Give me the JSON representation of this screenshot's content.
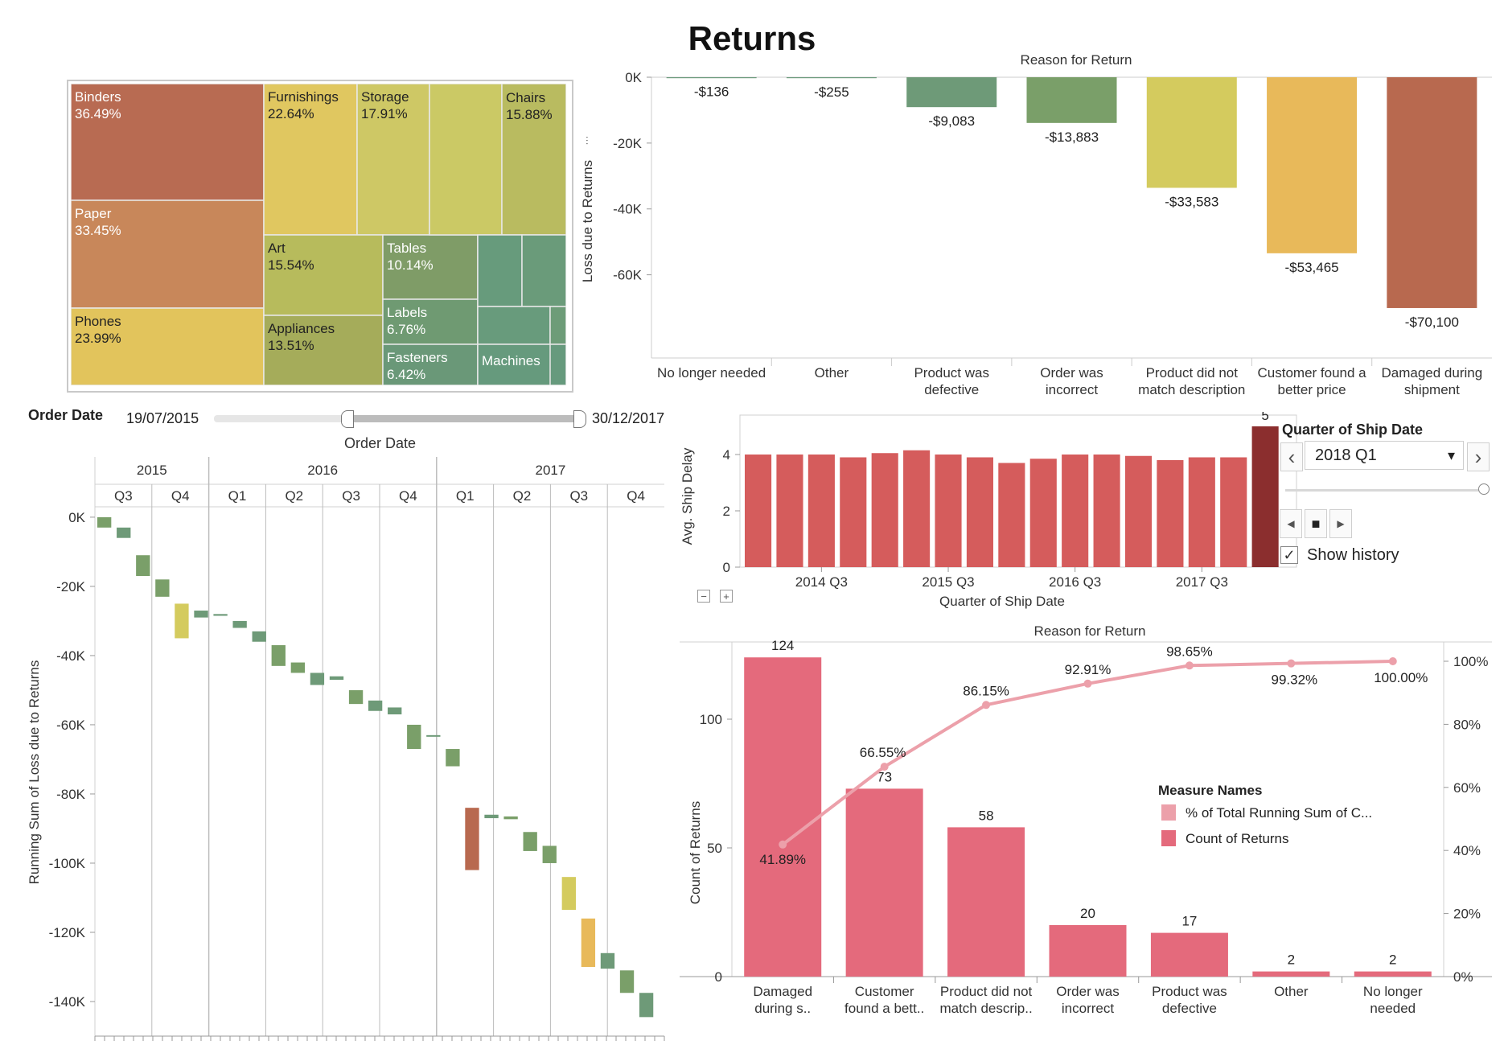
{
  "page_title": "Returns",
  "treemap": {
    "tiles": [
      {
        "name": "Binders",
        "pct": "36.49%",
        "color": "#b86b52"
      },
      {
        "name": "Paper",
        "pct": "33.45%",
        "color": "#c8875a"
      },
      {
        "name": "Phones",
        "pct": "23.99%",
        "color": "#e2c45c"
      },
      {
        "name": "Furnishings",
        "pct": "22.64%",
        "color": "#e0c760"
      },
      {
        "name": "Storage",
        "pct": "17.91%",
        "color": "#cec865"
      },
      {
        "name": "Chairs",
        "pct": "15.88%",
        "color": "#bcbb5f"
      },
      {
        "name": "Art",
        "pct": "15.54%",
        "color": "#b7bb5c"
      },
      {
        "name": "Appliances",
        "pct": "13.51%",
        "color": "#a5ac5a"
      },
      {
        "name": "Tables",
        "pct": "10.14%",
        "color": "#7f9c67"
      },
      {
        "name": "Labels",
        "pct": "6.76%",
        "color": "#6f9a72"
      },
      {
        "name": "Fasteners",
        "pct": "6.42%",
        "color": "#6a9878"
      },
      {
        "name": "Machines",
        "pct": "",
        "color": "#669a7d"
      }
    ]
  },
  "reason_chart": {
    "title": "Reason for Return",
    "ylabel": "Loss due to Returns",
    "yticks": [
      "0K",
      "-20K",
      "-40K",
      "-60K"
    ],
    "value_labels": [
      "-$136",
      "-$255",
      "-$9,083",
      "-$13,883",
      "-$33,583",
      "-$53,465",
      "-$70,100"
    ],
    "category_lines": [
      [
        "No longer needed"
      ],
      [
        "Other"
      ],
      [
        "Product was",
        "defective"
      ],
      [
        "Order was",
        "incorrect"
      ],
      [
        "Product did not",
        "match description"
      ],
      [
        "Customer found a",
        "better price"
      ],
      [
        "Damaged during",
        "shipment"
      ]
    ],
    "colors": [
      "#6b9a7c",
      "#6b9a7c",
      "#6e9a78",
      "#7a9f69",
      "#d4cb5e",
      "#e8b95a",
      "#b8694f"
    ]
  },
  "order_date_filter": {
    "label": "Order Date",
    "start": "19/07/2015",
    "end": "30/12/2017",
    "caption": "Order Date"
  },
  "running_chart": {
    "ylabel": "Running Sum of Loss due to Returns",
    "yticks": [
      "0K",
      "-20K",
      "-40K",
      "-60K",
      "-80K",
      "-100K",
      "-120K",
      "-140K"
    ],
    "years": [
      "2015",
      "2016",
      "2017"
    ],
    "quarters": [
      "Q3",
      "Q4",
      "Q1",
      "Q2",
      "Q3",
      "Q4",
      "Q1",
      "Q2",
      "Q3",
      "Q4"
    ]
  },
  "ship_chart": {
    "ylabel": "Avg. Ship Delay",
    "xlabel": "Quarter of Ship Date",
    "yticks": [
      "4",
      "2",
      "0"
    ],
    "xticks": [
      "2014 Q3",
      "2015 Q3",
      "2016 Q3",
      "2017 Q3"
    ],
    "highlight_label": "5",
    "bar_color": "#d55c5c",
    "highlight_color": "#8b2e2e"
  },
  "quarter_control": {
    "title": "Quarter of Ship Date",
    "selected": "2018 Q1",
    "show_history": "Show history",
    "prev_icon": "‹",
    "next_icon": "›",
    "dropdown_icon": "▾",
    "back_icon": "◀",
    "stop_icon": "■",
    "play_icon": "▶",
    "check_icon": "✓",
    "zoom_out_icon": "−",
    "zoom_in_icon": "+"
  },
  "pareto_chart": {
    "title": "Reason for Return",
    "ylabel": "Count of Returns",
    "yticks": [
      "100",
      "50",
      "0"
    ],
    "y2ticks": [
      "100%",
      "80%",
      "60%",
      "40%",
      "20%",
      "0%"
    ],
    "count_labels": [
      "124",
      "73",
      "58",
      "20",
      "17",
      "2",
      "2"
    ],
    "pct_labels": [
      "41.89%",
      "66.55%",
      "86.15%",
      "92.91%",
      "98.65%",
      "99.32%",
      "100.00%"
    ],
    "category_lines": [
      [
        "Damaged",
        "during s.."
      ],
      [
        "Customer",
        "found a bett.."
      ],
      [
        "Product did not",
        "match descrip.."
      ],
      [
        "Order was",
        "incorrect"
      ],
      [
        "Product was",
        "defective"
      ],
      [
        "Other"
      ],
      [
        "No longer",
        "needed"
      ]
    ],
    "legend_title": "Measure Names",
    "legend_items": [
      "% of Total Running Sum of C...",
      "Count of Returns"
    ],
    "bar_color": "#e46a7c",
    "line_color": "#eca0aa"
  },
  "chart_data": [
    {
      "type": "bar",
      "title": "Reason for Return",
      "ylabel": "Loss due to Returns",
      "categories": [
        "No longer needed",
        "Other",
        "Product was defective",
        "Order was incorrect",
        "Product did not match description",
        "Customer found a better price",
        "Damaged during shipment"
      ],
      "values": [
        -136,
        -255,
        -9083,
        -13883,
        -33583,
        -53465,
        -70100
      ],
      "ylim": [
        -75000,
        0
      ]
    },
    {
      "type": "bar",
      "title": "",
      "ylabel": "Running Sum of Loss due to Returns",
      "subtype": "waterfall",
      "segments": [
        {
          "start": 0,
          "end": -3000,
          "color": "#7a9f69"
        },
        {
          "start": -3000,
          "end": -6000,
          "color": "#6e9a78"
        },
        {
          "start": -11000,
          "end": -17000,
          "color": "#7a9f69"
        },
        {
          "start": -18000,
          "end": -23000,
          "color": "#7a9f69"
        },
        {
          "start": -25000,
          "end": -35000,
          "color": "#d4cb5e"
        },
        {
          "start": -27000,
          "end": -29000,
          "color": "#6e9a78"
        },
        {
          "start": -28000,
          "end": -28500,
          "color": "#6e9a78"
        },
        {
          "start": -30000,
          "end": -32000,
          "color": "#6e9a78"
        },
        {
          "start": -33000,
          "end": -36000,
          "color": "#6e9a78"
        },
        {
          "start": -37000,
          "end": -43000,
          "color": "#7a9f69"
        },
        {
          "start": -42000,
          "end": -45000,
          "color": "#7a9f69"
        },
        {
          "start": -45000,
          "end": -48500,
          "color": "#6e9a78"
        },
        {
          "start": -46000,
          "end": -47000,
          "color": "#6e9a78"
        },
        {
          "start": -50000,
          "end": -54000,
          "color": "#7a9f69"
        },
        {
          "start": -53000,
          "end": -56000,
          "color": "#6e9a78"
        },
        {
          "start": -55000,
          "end": -57000,
          "color": "#6e9a78"
        },
        {
          "start": -60000,
          "end": -67000,
          "color": "#7a9f69"
        },
        {
          "start": -63000,
          "end": -63300,
          "color": "#6e9a78"
        },
        {
          "start": -67000,
          "end": -72000,
          "color": "#7a9f69"
        },
        {
          "start": -84000,
          "end": -102000,
          "color": "#b8694f"
        },
        {
          "start": -86000,
          "end": -87000,
          "color": "#6e9a78"
        },
        {
          "start": -86500,
          "end": -87300,
          "color": "#7a9f69"
        },
        {
          "start": -91000,
          "end": -96500,
          "color": "#7a9f69"
        },
        {
          "start": -95000,
          "end": -100000,
          "color": "#7a9f69"
        },
        {
          "start": -104000,
          "end": -113500,
          "color": "#d4cb5e"
        },
        {
          "start": -116000,
          "end": -130000,
          "color": "#e8b95a"
        },
        {
          "start": -126000,
          "end": -130500,
          "color": "#6e9a78"
        },
        {
          "start": -131000,
          "end": -137500,
          "color": "#7a9f69"
        },
        {
          "start": -137500,
          "end": -144500,
          "color": "#6e9a78"
        }
      ],
      "ylim": [
        -150000,
        3000
      ]
    },
    {
      "type": "bar",
      "title": "",
      "xlabel": "Quarter of Ship Date",
      "ylabel": "Avg. Ship Delay",
      "values": [
        4.0,
        4.0,
        4.0,
        3.9,
        4.05,
        4.15,
        4.0,
        3.9,
        3.7,
        3.85,
        4.0,
        4.0,
        3.95,
        3.8,
        3.9,
        3.9,
        5.0
      ],
      "highlight_index": 16,
      "ylim": [
        0,
        5
      ]
    },
    {
      "type": "bar",
      "title": "Reason for Return",
      "ylabel": "Count of Returns",
      "categories": [
        "Damaged during s..",
        "Customer found a bett..",
        "Product did not match descrip..",
        "Order was incorrect",
        "Product was defective",
        "Other",
        "No longer needed"
      ],
      "series": [
        {
          "name": "Count of Returns",
          "values": [
            124,
            73,
            58,
            20,
            17,
            2,
            2
          ]
        },
        {
          "name": "% of Total Running Sum of C...",
          "values": [
            41.89,
            66.55,
            86.15,
            92.91,
            98.65,
            99.32,
            100.0
          ]
        }
      ],
      "ylim": [
        0,
        130
      ],
      "y2lim": [
        0,
        100
      ]
    }
  ]
}
